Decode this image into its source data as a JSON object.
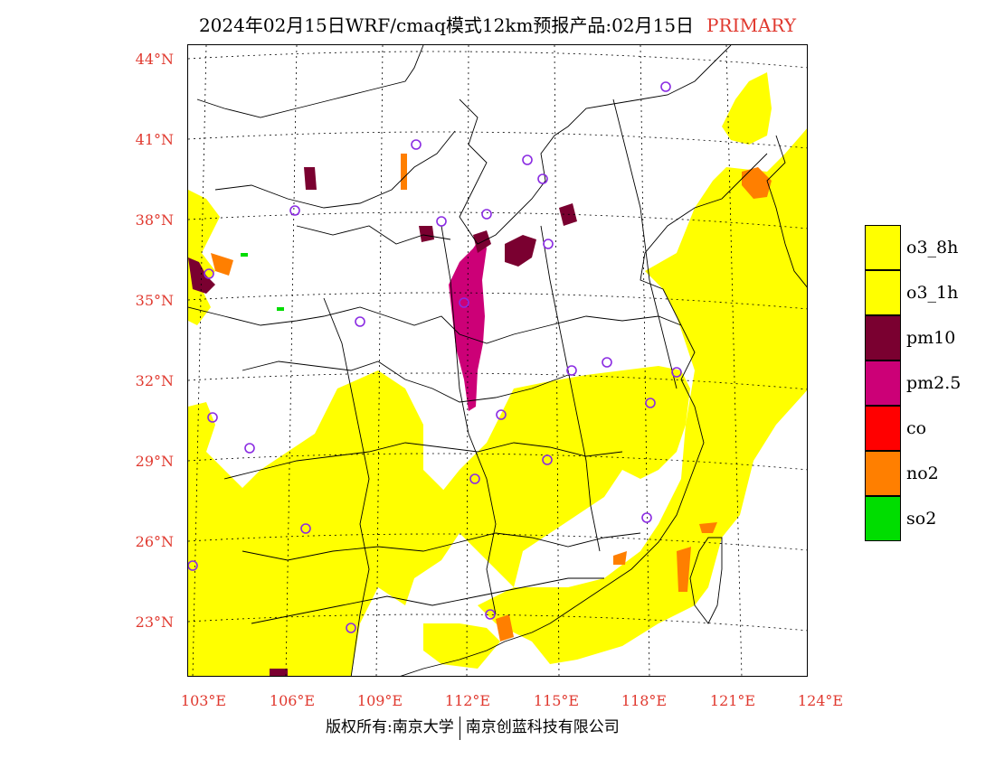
{
  "title": {
    "main": "2024年02月15日WRF/cmaq模式12km预报产品:02月15日",
    "tag": "PRIMARY"
  },
  "lat_labels": [
    "44°N",
    "41°N",
    "38°N",
    "35°N",
    "32°N",
    "29°N",
    "26°N",
    "23°N"
  ],
  "lon_labels": [
    "103°E",
    "106°E",
    "109°E",
    "112°E",
    "115°E",
    "118°E",
    "121°E",
    "124°E"
  ],
  "legend": [
    {
      "label": "o3_8h",
      "color": "#ffff00"
    },
    {
      "label": "o3_1h",
      "color": "#ffff00"
    },
    {
      "label": "pm10",
      "color": "#7a0030"
    },
    {
      "label": "pm2.5",
      "color": "#cc0077"
    },
    {
      "label": "co",
      "color": "#ff0000"
    },
    {
      "label": "no2",
      "color": "#ff7f00"
    },
    {
      "label": "so2",
      "color": "#00dd00"
    }
  ],
  "footer": {
    "left": "版权所有:南京大学",
    "right": "南京创蓝科技有限公司"
  }
}
